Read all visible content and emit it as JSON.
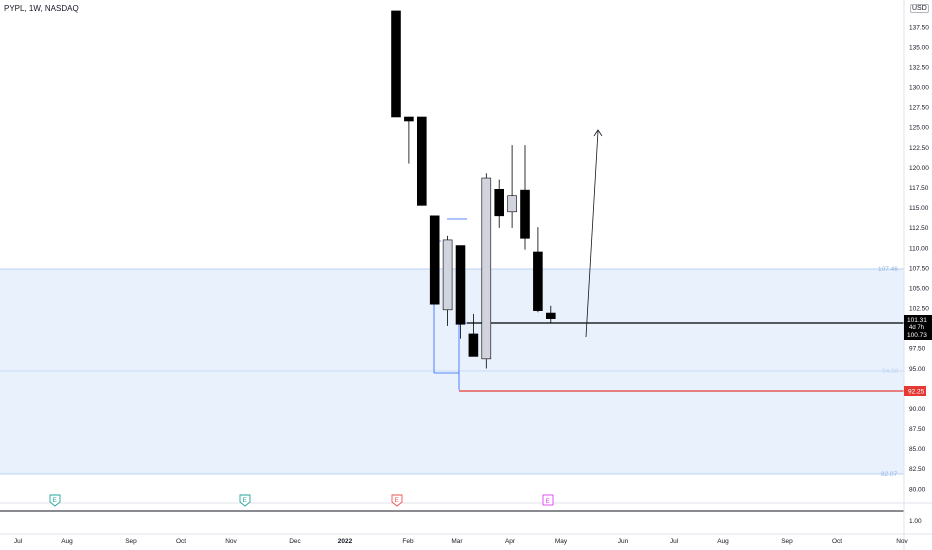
{
  "header": {
    "symbol": "PYPL, 1W, NASDAQ",
    "currency": "USD"
  },
  "chart_data": {
    "type": "candlestick",
    "yaxis": {
      "ticks": [
        "137.50",
        "135.00",
        "132.50",
        "130.00",
        "127.50",
        "125.00",
        "122.50",
        "120.00",
        "117.50",
        "115.00",
        "112.50",
        "110.00",
        "107.50",
        "105.00",
        "102.50",
        "100.00",
        "97.50",
        "95.00",
        "92.50",
        "90.00",
        "87.50",
        "85.00",
        "82.50",
        "80.00"
      ],
      "ylim": [
        79.0,
        139.5
      ]
    },
    "xaxis": {
      "labels": [
        "Jul",
        "Aug",
        "Sep",
        "Oct",
        "Nov",
        "Dec",
        "2022",
        "Feb",
        "Mar",
        "Apr",
        "May",
        "Jun",
        "Jul",
        "Aug",
        "Sep",
        "Oct",
        "Nov"
      ]
    },
    "candles": [
      {
        "x": "2022-01-24",
        "open": 139.5,
        "high": 139.5,
        "low": 126.3,
        "close": 126.3,
        "color": "black"
      },
      {
        "x": "2022-01-31",
        "open": 125.8,
        "high": 126.3,
        "low": 120.5,
        "close": 126.3,
        "color": "black"
      },
      {
        "x": "2022-02-07",
        "open": 126.3,
        "high": 126.3,
        "low": 115.3,
        "close": 115.3,
        "color": "black"
      },
      {
        "x": "2022-02-14",
        "open": 114.0,
        "high": 114.0,
        "low": 103.0,
        "close": 103.0,
        "color": "black"
      },
      {
        "x": "2022-02-21",
        "open": 102.3,
        "high": 111.5,
        "low": 100.3,
        "close": 111.0,
        "color": "gray"
      },
      {
        "x": "2022-02-28",
        "open": 110.3,
        "high": 110.3,
        "low": 98.7,
        "close": 100.5,
        "color": "black"
      },
      {
        "x": "2022-03-07",
        "open": 99.3,
        "high": 101.8,
        "low": 96.5,
        "close": 96.5,
        "color": "black"
      },
      {
        "x": "2022-03-14",
        "open": 96.2,
        "high": 119.3,
        "low": 95.0,
        "close": 118.7,
        "color": "gray"
      },
      {
        "x": "2022-03-21",
        "open": 117.3,
        "high": 118.5,
        "low": 112.5,
        "close": 114.0,
        "color": "black"
      },
      {
        "x": "2022-03-28",
        "open": 114.5,
        "high": 122.8,
        "low": 112.5,
        "close": 116.5,
        "color": "gray"
      },
      {
        "x": "2022-04-04",
        "open": 117.2,
        "high": 122.8,
        "low": 109.8,
        "close": 111.2,
        "color": "black"
      },
      {
        "x": "2022-04-11",
        "open": 109.5,
        "high": 112.6,
        "low": 102.0,
        "close": 102.2,
        "color": "black"
      },
      {
        "x": "2022-04-18",
        "open": 101.9,
        "high": 102.8,
        "low": 100.7,
        "close": 101.2,
        "color": "black"
      }
    ],
    "annotations": {
      "upper_zone_label": "107.46",
      "mid_zone_label": "94.98",
      "lower_zone_label": "82.07",
      "current_price": "101.31",
      "countdown": "4d 7h",
      "second_price": "100.73",
      "red_level": "92.25",
      "earnings_marker": "E",
      "indicator_value": "1.00"
    }
  },
  "colors": {
    "zone_fill": "#e9f1fd",
    "zone_line": "#a8c8ef",
    "red_line": "#e53935",
    "bear_candle": "#000000",
    "bull_candle": "#d1d4dc",
    "blue_line": "#2962ff",
    "earnings_green": "#26a69a",
    "earnings_red": "#ef5350",
    "earnings_magenta": "#e040fb"
  }
}
